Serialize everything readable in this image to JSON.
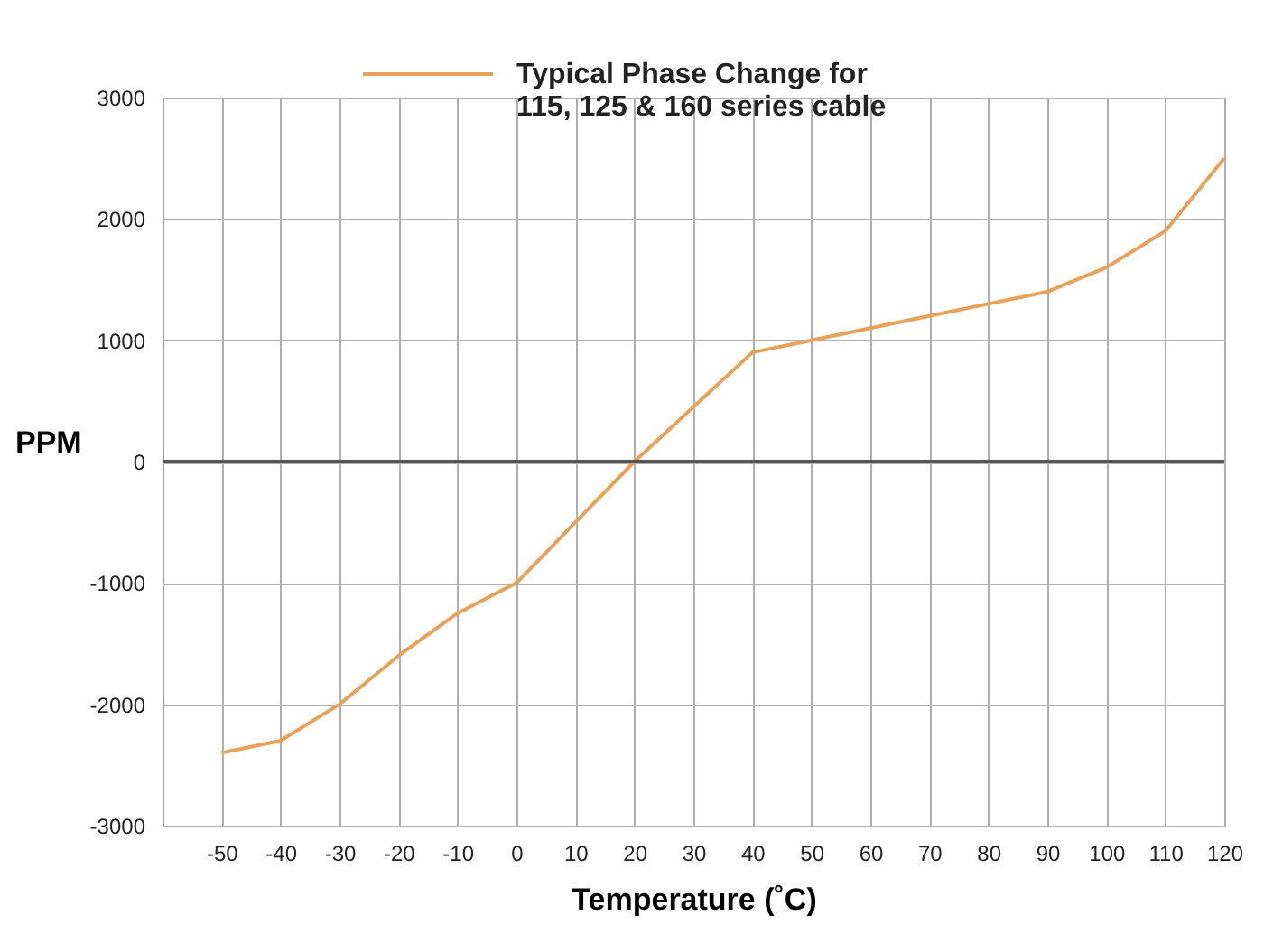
{
  "chart_data": {
    "type": "line",
    "xlabel": "Temperature (˚C)",
    "ylabel": "PPM",
    "x": [
      -50,
      -40,
      -30,
      -20,
      -10,
      0,
      10,
      20,
      30,
      40,
      50,
      60,
      70,
      80,
      90,
      100,
      110,
      120
    ],
    "series": [
      {
        "name": "Typical Phase Change for\n115, 125 & 160 series cable",
        "color": "#e8a159",
        "values": [
          -2400,
          -2300,
          -2000,
          -1600,
          -1250,
          -1000,
          -500,
          0,
          450,
          900,
          1000,
          1100,
          1200,
          1300,
          1400,
          1600,
          1900,
          2500
        ]
      }
    ],
    "xlim": [
      -60,
      120
    ],
    "xticks": [
      -50,
      -40,
      -30,
      -20,
      -10,
      0,
      10,
      20,
      30,
      40,
      50,
      60,
      70,
      80,
      90,
      100,
      110,
      120
    ],
    "ylim": [
      -3000,
      3000
    ],
    "yticks": [
      -3000,
      -2000,
      -1000,
      0,
      1000,
      2000,
      3000
    ],
    "ref_lines": [
      {
        "axis": "y",
        "value": 0,
        "color": "#555555"
      }
    ],
    "grid": true,
    "legend": "top",
    "line_style": "solid",
    "marker": "none"
  }
}
